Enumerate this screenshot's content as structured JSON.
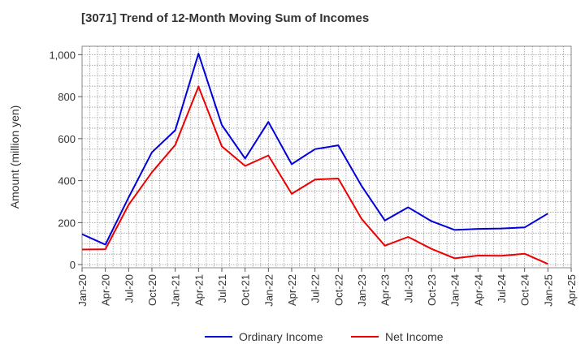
{
  "chart_data": {
    "type": "line",
    "title": "[3071]  Trend of 12-Month Moving Sum of Incomes",
    "xlabel": "",
    "ylabel": "Amount (million yen)",
    "ylim": [
      -15,
      1040
    ],
    "yticks": [
      0,
      200,
      400,
      600,
      800,
      1000
    ],
    "ytick_labels": [
      "0",
      "200",
      "400",
      "600",
      "800",
      "1,000"
    ],
    "grid": true,
    "legend_position": "bottom-center",
    "categories": [
      "Jan-20",
      "Apr-20",
      "Jul-20",
      "Oct-20",
      "Jan-21",
      "Apr-21",
      "Jul-21",
      "Oct-21",
      "Jan-22",
      "Apr-22",
      "Jul-22",
      "Oct-22",
      "Jan-23",
      "Apr-23",
      "Jul-23",
      "Oct-23",
      "Jan-24",
      "Apr-24",
      "Jul-24",
      "Oct-24",
      "Jan-25",
      "Apr-25"
    ],
    "series": [
      {
        "name": "Ordinary Income",
        "color": "#0000dd",
        "values": [
          145,
          95,
          320,
          535,
          640,
          1005,
          665,
          505,
          680,
          478,
          550,
          568,
          375,
          210,
          273,
          207,
          165,
          170,
          172,
          177,
          243,
          null
        ]
      },
      {
        "name": "Net Income",
        "color": "#ee0000",
        "values": [
          72,
          73,
          285,
          440,
          570,
          848,
          563,
          470,
          520,
          337,
          405,
          410,
          218,
          90,
          132,
          75,
          30,
          43,
          42,
          52,
          3,
          null
        ]
      }
    ]
  }
}
